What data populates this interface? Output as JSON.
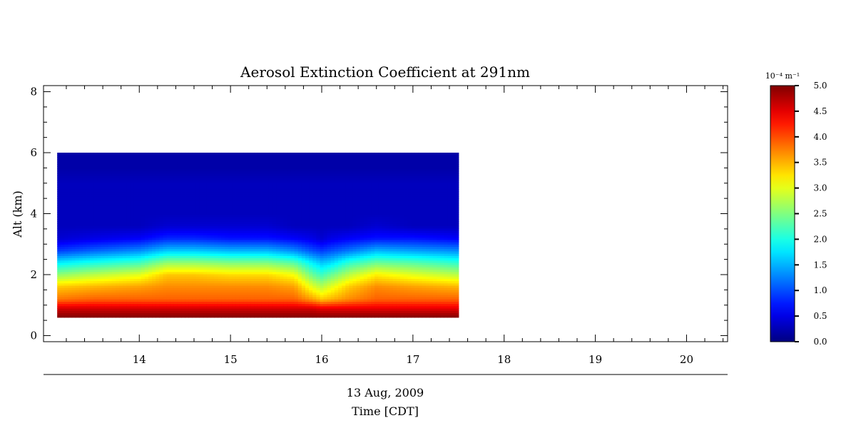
{
  "chart_data": {
    "type": "heatmap",
    "title": "Aerosol Extinction Coefficient at 291nm",
    "ylabel": "Alt (km)",
    "xlabel_line1": "13 Aug, 2009",
    "xlabel_line2": "Time [CDT]",
    "xlim": [
      12.95,
      20.45
    ],
    "ylim": [
      -0.2,
      8.2
    ],
    "x_ticks": [
      "14",
      "15",
      "16",
      "17",
      "18",
      "19",
      "20"
    ],
    "x_tick_values": [
      14,
      15,
      16,
      17,
      18,
      19,
      20
    ],
    "y_ticks": [
      "0",
      "2",
      "4",
      "6",
      "8"
    ],
    "y_tick_values": [
      0,
      2,
      4,
      6,
      8
    ],
    "data_extent": {
      "x": [
        13.1,
        17.5
      ],
      "y": [
        0.6,
        6.0
      ]
    },
    "grid": false,
    "colorbar": {
      "label": "10⁻⁴ m⁻¹",
      "min": 0.0,
      "max": 5.0,
      "ticks": [
        "0.0",
        "0.5",
        "1.0",
        "1.5",
        "2.0",
        "2.5",
        "3.0",
        "3.5",
        "4.0",
        "4.5",
        "5.0"
      ],
      "colormap": "jet"
    },
    "profile_times": [
      13.1,
      13.5,
      14.0,
      14.3,
      14.6,
      15.0,
      15.4,
      15.7,
      15.9,
      16.0,
      16.1,
      16.3,
      16.6,
      17.0,
      17.5
    ],
    "profile_altitudes": [
      0.6,
      0.9,
      1.2,
      1.6,
      2.0,
      2.4,
      2.8,
      3.2,
      3.6,
      4.0,
      4.5,
      5.0,
      5.5,
      6.0
    ],
    "values": [
      [
        5.0,
        4.6,
        3.8,
        3.4,
        2.6,
        1.8,
        0.9,
        0.4,
        0.3,
        0.3,
        0.3,
        0.3,
        0.2,
        0.2
      ],
      [
        5.0,
        4.6,
        3.9,
        3.5,
        2.8,
        2.0,
        1.1,
        0.5,
        0.3,
        0.3,
        0.3,
        0.3,
        0.2,
        0.2
      ],
      [
        5.0,
        4.6,
        3.9,
        3.6,
        3.0,
        2.2,
        1.3,
        0.6,
        0.3,
        0.3,
        0.3,
        0.3,
        0.2,
        0.2
      ],
      [
        5.0,
        4.6,
        3.9,
        3.7,
        3.4,
        2.6,
        1.6,
        0.8,
        0.4,
        0.3,
        0.3,
        0.3,
        0.2,
        0.2
      ],
      [
        5.0,
        4.6,
        3.9,
        3.7,
        3.4,
        2.6,
        1.6,
        0.8,
        0.4,
        0.3,
        0.3,
        0.3,
        0.2,
        0.2
      ],
      [
        5.0,
        4.6,
        3.9,
        3.7,
        3.3,
        2.5,
        1.5,
        0.7,
        0.4,
        0.3,
        0.3,
        0.3,
        0.2,
        0.2
      ],
      [
        5.0,
        4.6,
        3.9,
        3.7,
        3.3,
        2.5,
        1.5,
        0.7,
        0.4,
        0.3,
        0.3,
        0.3,
        0.2,
        0.2
      ],
      [
        5.0,
        4.6,
        3.9,
        3.6,
        3.1,
        2.3,
        1.3,
        0.6,
        0.3,
        0.3,
        0.3,
        0.3,
        0.2,
        0.2
      ],
      [
        5.0,
        4.6,
        3.6,
        3.0,
        2.4,
        1.8,
        1.0,
        0.5,
        0.3,
        0.3,
        0.3,
        0.3,
        0.2,
        0.2
      ],
      [
        5.0,
        4.5,
        3.4,
        2.8,
        2.2,
        1.6,
        0.9,
        0.4,
        0.3,
        0.3,
        0.3,
        0.3,
        0.2,
        0.2
      ],
      [
        5.0,
        4.5,
        3.5,
        3.0,
        2.4,
        1.7,
        1.0,
        0.5,
        0.3,
        0.3,
        0.3,
        0.3,
        0.2,
        0.2
      ],
      [
        5.0,
        4.5,
        3.7,
        3.4,
        2.8,
        2.1,
        1.2,
        0.6,
        0.3,
        0.3,
        0.3,
        0.3,
        0.2,
        0.2
      ],
      [
        5.0,
        4.5,
        3.9,
        3.7,
        3.2,
        2.4,
        1.5,
        0.7,
        0.4,
        0.3,
        0.3,
        0.3,
        0.2,
        0.2
      ],
      [
        5.0,
        4.5,
        3.9,
        3.6,
        3.0,
        2.3,
        1.4,
        0.7,
        0.3,
        0.3,
        0.3,
        0.3,
        0.2,
        0.2
      ],
      [
        5.0,
        4.5,
        3.9,
        3.5,
        2.8,
        2.1,
        1.3,
        0.6,
        0.3,
        0.3,
        0.3,
        0.3,
        0.2,
        0.2
      ]
    ]
  }
}
